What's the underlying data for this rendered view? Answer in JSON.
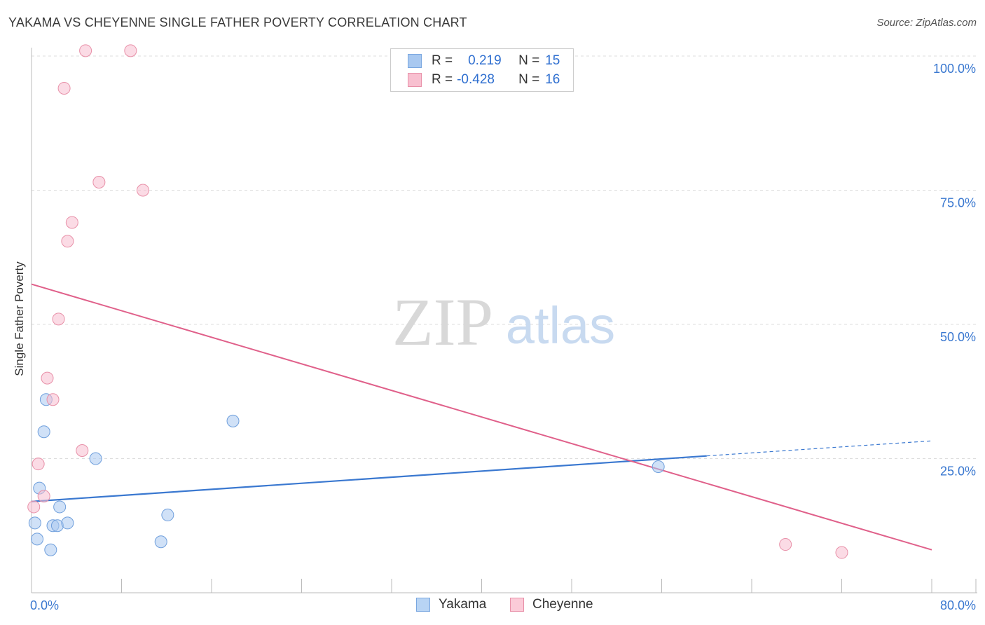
{
  "title": "YAKAMA VS CHEYENNE SINGLE FATHER POVERTY CORRELATION CHART",
  "source": "Source: ZipAtlas.com",
  "watermark": {
    "zip": "ZIP",
    "atlas": "atlas"
  },
  "legend_stats": [
    {
      "r_label": "R =",
      "r_value": "0.219",
      "n_label": "N =",
      "n_value": "15",
      "color": "#a8c8f0",
      "border": "#7aa7e0"
    },
    {
      "r_label": "R =",
      "r_value": "-0.428",
      "n_label": "N =",
      "n_value": "16",
      "color": "#f8c0d0",
      "border": "#e890a8"
    }
  ],
  "legend_bottom": [
    {
      "name": "Yakama",
      "color": "#b8d4f4",
      "border": "#7aa7e0"
    },
    {
      "name": "Cheyenne",
      "color": "#fbcbd8",
      "border": "#e890a8"
    }
  ],
  "chart_data": {
    "type": "scatter",
    "title": "YAKAMA VS CHEYENNE SINGLE FATHER POVERTY CORRELATION CHART",
    "xlabel": "",
    "ylabel": "Single Father Poverty",
    "xlim": [
      0,
      80
    ],
    "ylim": [
      0,
      100
    ],
    "x_tick_labels": [
      "0.0%",
      "80.0%"
    ],
    "y_tick_values": [
      25,
      50,
      75,
      100
    ],
    "y_tick_labels": [
      "25.0%",
      "50.0%",
      "75.0%",
      "100.0%"
    ],
    "series": [
      {
        "name": "Yakama",
        "color": "#3a78d0",
        "points": [
          {
            "x": 0.3,
            "y": 13.0
          },
          {
            "x": 0.5,
            "y": 10.0
          },
          {
            "x": 0.7,
            "y": 19.5
          },
          {
            "x": 1.1,
            "y": 30.0
          },
          {
            "x": 1.3,
            "y": 36.0
          },
          {
            "x": 1.7,
            "y": 8.0
          },
          {
            "x": 1.9,
            "y": 12.5
          },
          {
            "x": 2.3,
            "y": 12.5
          },
          {
            "x": 2.5,
            "y": 16.0
          },
          {
            "x": 3.2,
            "y": 13.0
          },
          {
            "x": 5.7,
            "y": 25.0
          },
          {
            "x": 11.5,
            "y": 9.5
          },
          {
            "x": 12.1,
            "y": 14.5
          },
          {
            "x": 17.9,
            "y": 32.0
          },
          {
            "x": 55.7,
            "y": 23.5
          }
        ],
        "trend": {
          "x0": 0,
          "y0": 17.0,
          "x1": 60,
          "y1": 25.5,
          "dash_to_x": 80,
          "dash_to_y": 28.3
        }
      },
      {
        "name": "Cheyenne",
        "color": "#e0608a",
        "points": [
          {
            "x": 0.2,
            "y": 16.0
          },
          {
            "x": 0.6,
            "y": 24.0
          },
          {
            "x": 1.1,
            "y": 18.0
          },
          {
            "x": 1.4,
            "y": 40.0
          },
          {
            "x": 1.9,
            "y": 36.0
          },
          {
            "x": 2.4,
            "y": 51.0
          },
          {
            "x": 2.9,
            "y": 94.0
          },
          {
            "x": 3.2,
            "y": 65.5
          },
          {
            "x": 3.6,
            "y": 69.0
          },
          {
            "x": 4.5,
            "y": 26.5
          },
          {
            "x": 4.8,
            "y": 101.0
          },
          {
            "x": 6.0,
            "y": 76.5
          },
          {
            "x": 8.8,
            "y": 101.0
          },
          {
            "x": 9.9,
            "y": 75.0
          },
          {
            "x": 67.0,
            "y": 9.0
          },
          {
            "x": 72.0,
            "y": 7.5
          }
        ],
        "trend": {
          "x0": 0,
          "y0": 57.5,
          "x1": 80,
          "y1": 8.0
        }
      }
    ]
  }
}
